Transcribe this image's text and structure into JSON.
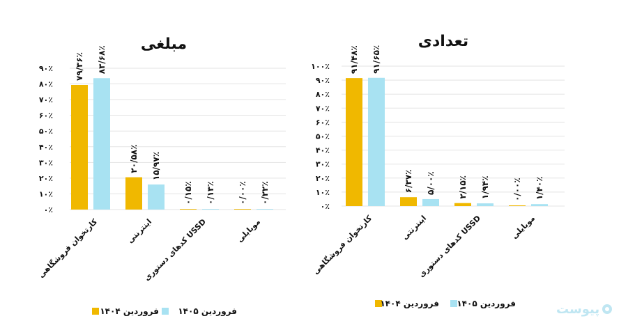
{
  "colors": {
    "series1": "#F0B800",
    "series2": "#A8E2F2",
    "grid": "#E3E3E3",
    "text": "#111111"
  },
  "logo": {
    "text": "پیوست",
    "icon": "circle-logo-icon"
  },
  "chart_data": [
    {
      "type": "bar",
      "title": "مبلغی",
      "categories": [
        "کارتخوان فروشگاهی",
        "اینترنتی",
        "کدهای دستوری USSD",
        "موبایلی"
      ],
      "y_ticks": [
        "۰٪",
        "۱۰٪",
        "۲۰٪",
        "۳۰٪",
        "۴۰٪",
        "۵۰٪",
        "۶۰٪",
        "۷۰٪",
        "۸۰٪",
        "۹۰٪"
      ],
      "ylim": [
        0,
        90
      ],
      "series": [
        {
          "name": "فروردین ۱۴۰۴",
          "values": [
            79.36,
            20.58,
            0.15,
            0.0
          ],
          "labels": [
            "۷۹/۳۶٪",
            "۲۰/۵۸٪",
            "۰/۱۵٪",
            "۰/۰۰٪"
          ]
        },
        {
          "name": "فروردین ۱۴۰۵",
          "values": [
            83.68,
            15.97,
            0.13,
            0.22
          ],
          "labels": [
            "۸۳/۶۸٪",
            "۱۵/۹۷٪",
            "۰/۱۳٪",
            "۰/۲۲٪"
          ]
        }
      ],
      "grid": true,
      "legend": "bottom"
    },
    {
      "type": "bar",
      "title": "تعدادی",
      "categories": [
        "کارتخوان فروشگاهی",
        "اینترنتی",
        "کدهای دستوری USSD",
        "موبایلی"
      ],
      "y_ticks": [
        "۰٪",
        "۱۰٪",
        "۲۰٪",
        "۳۰٪",
        "۴۰٪",
        "۵۰٪",
        "۶۰٪",
        "۷۰٪",
        "۸۰٪",
        "۹۰٪",
        "۱۰۰٪"
      ],
      "ylim": [
        0,
        100
      ],
      "series": [
        {
          "name": "فروردین ۱۴۰۴",
          "values": [
            91.48,
            6.37,
            2.15,
            0.0
          ],
          "labels": [
            "۹۱/۴۸٪",
            "۶/۳۷٪",
            "۲/۱۵٪",
            "۰/۰۰٪"
          ]
        },
        {
          "name": "فروردین ۱۴۰۵",
          "values": [
            91.65,
            5.0,
            1.94,
            1.4
          ],
          "labels": [
            "۹۱/۶۵٪",
            "۵/۰۰٪",
            "۱/۹۴٪",
            "۱/۴۰٪"
          ]
        }
      ],
      "grid": true,
      "legend": "bottom"
    }
  ]
}
